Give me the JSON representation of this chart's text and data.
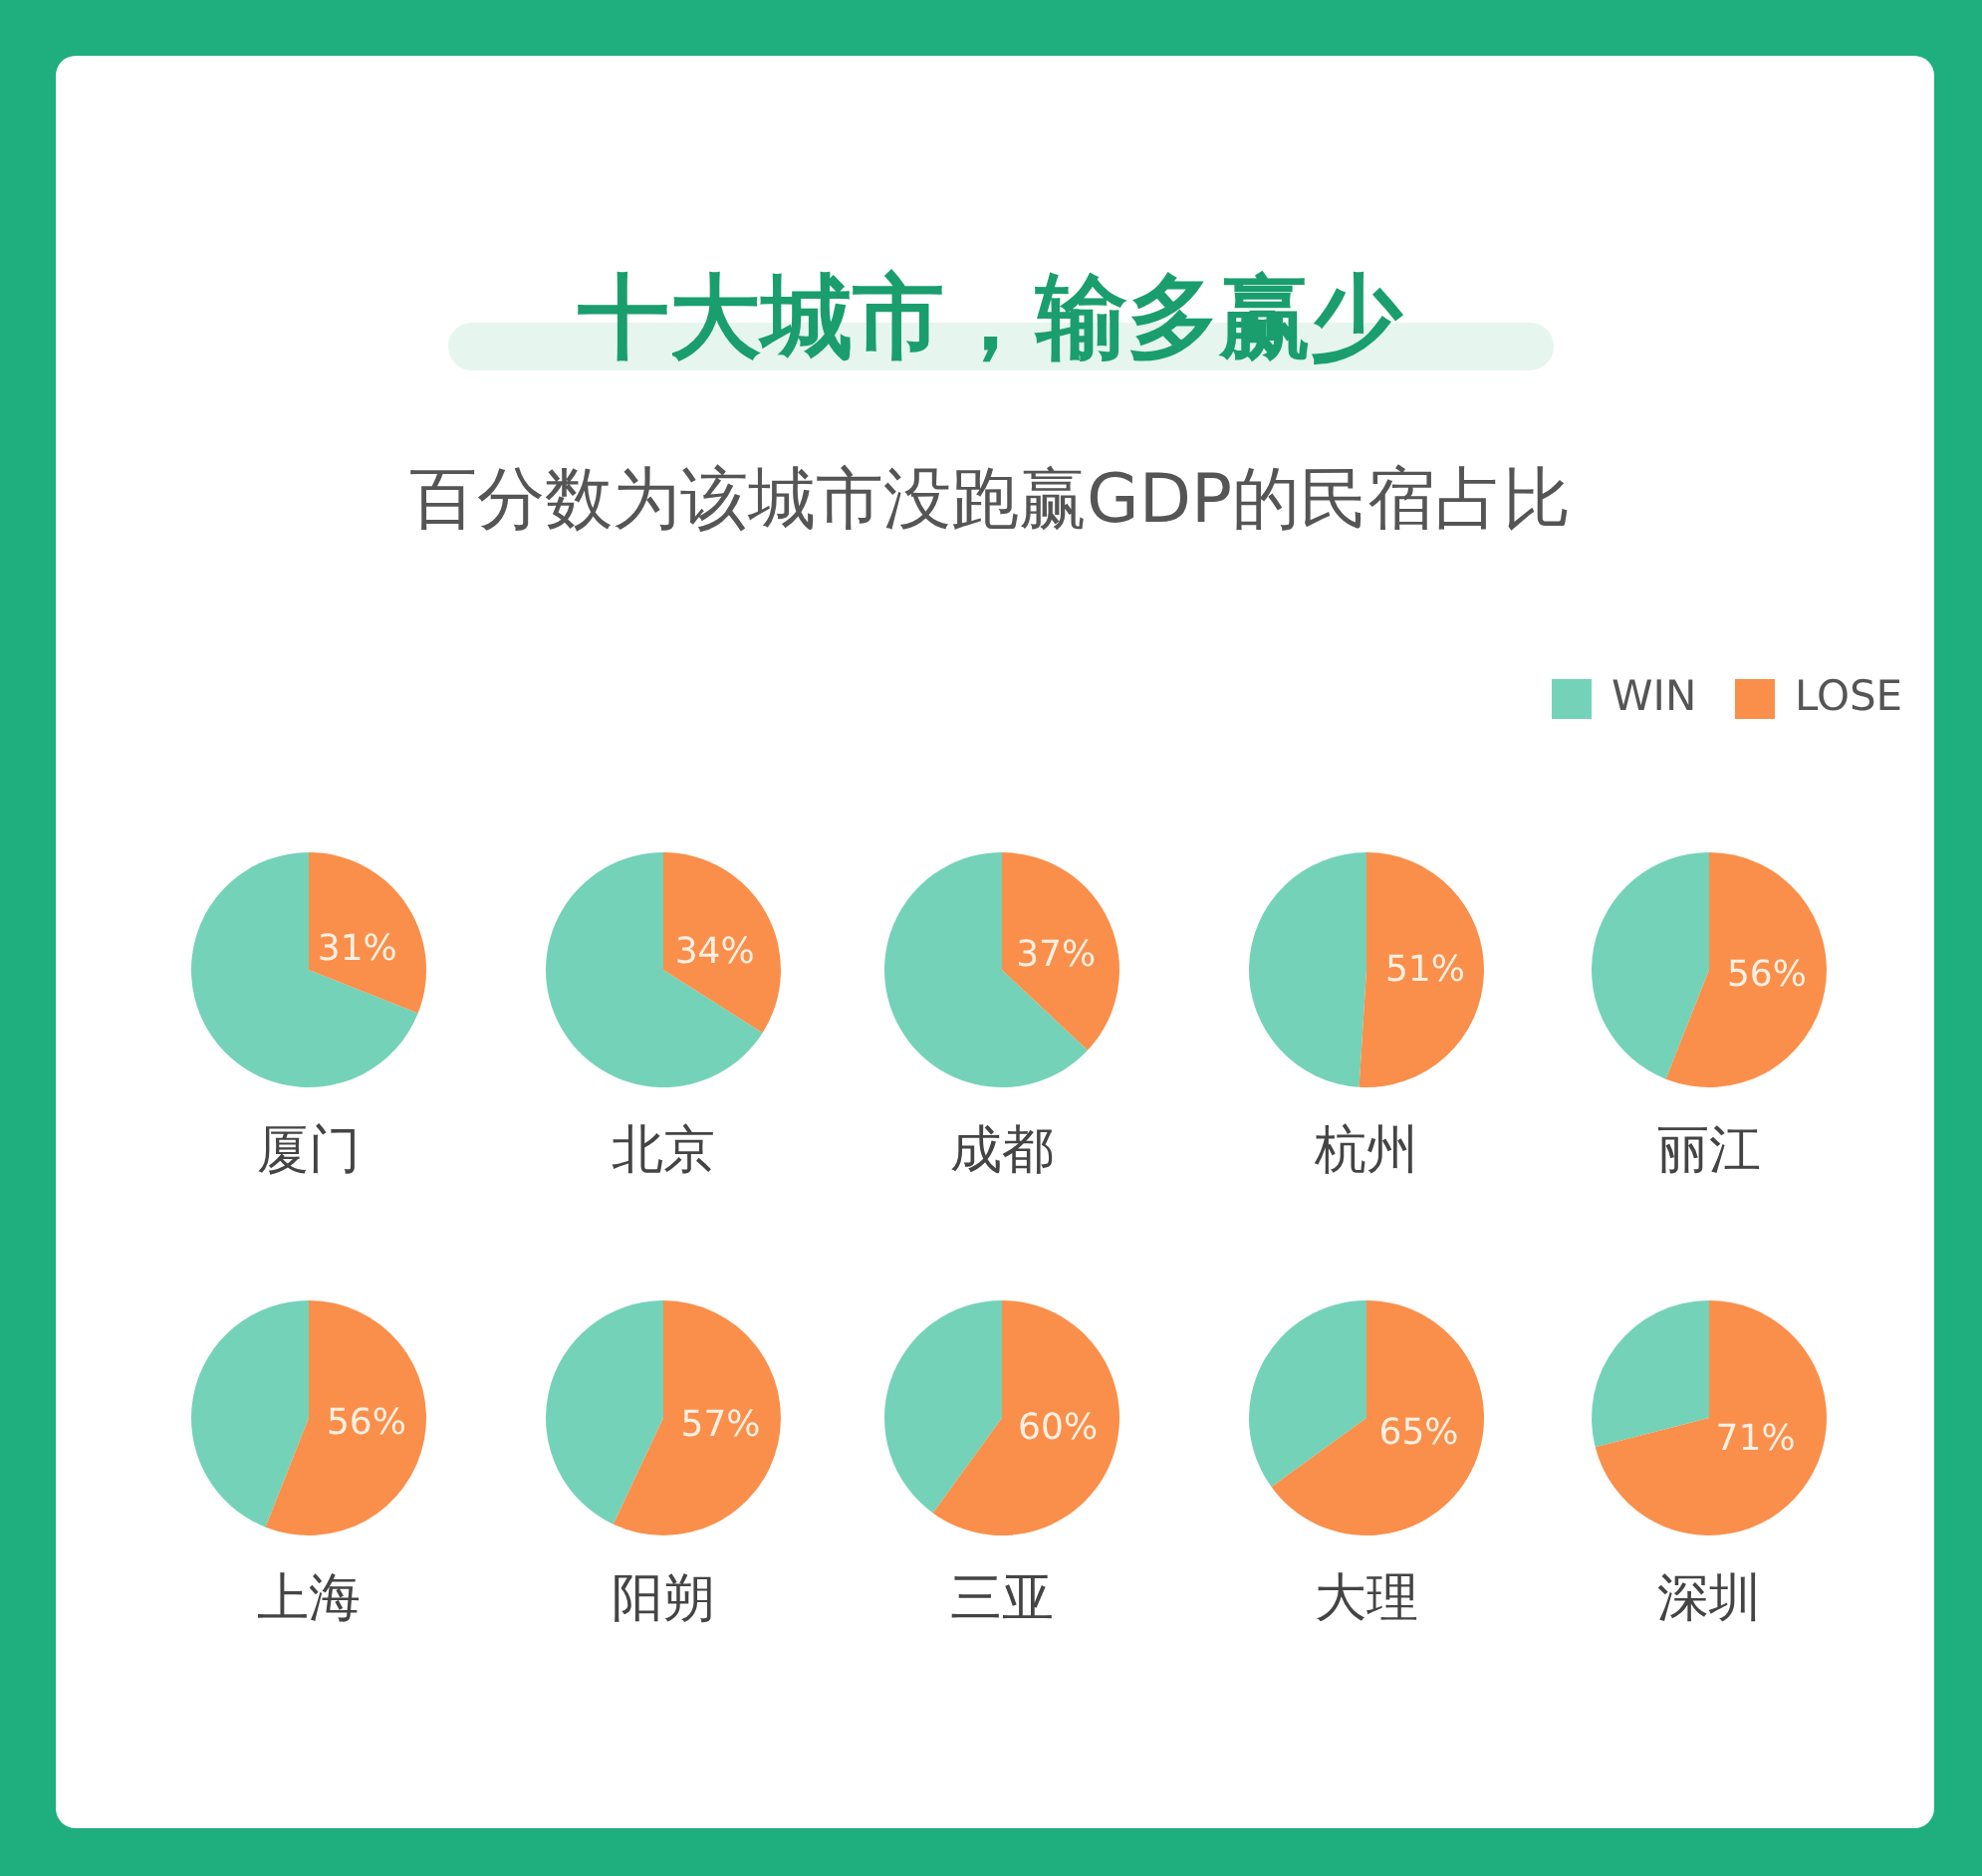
{
  "chart_data": [
    {
      "type": "other",
      "title": "十大城市，输多赢少",
      "subtitle": "百分数为该城市没跑赢GDP的民宿占比"
    },
    {
      "type": "pie",
      "title": "厦门",
      "categories": [
        null,
        null
      ],
      "values": [
        69,
        31
      ],
      "colors": [
        "#74d2b8",
        "#f98f4a"
      ],
      "value_labels": [
        null,
        "31%"
      ]
    },
    {
      "type": "pie",
      "title": "北京",
      "categories": [
        null,
        null
      ],
      "values": [
        66,
        34
      ],
      "colors": [
        "#74d2b8",
        "#f98f4a"
      ],
      "value_labels": [
        null,
        "34%"
      ]
    },
    {
      "type": "pie",
      "title": "成都",
      "categories": [
        null,
        null
      ],
      "values": [
        63,
        37
      ],
      "colors": [
        "#74d2b8",
        "#f98f4a"
      ],
      "value_labels": [
        null,
        "37%"
      ]
    },
    {
      "type": "pie",
      "title": "杭州",
      "categories": [
        null,
        null
      ],
      "values": [
        49,
        51
      ],
      "colors": [
        "#74d2b8",
        "#f98f4a"
      ],
      "value_labels": [
        null,
        "51%"
      ]
    },
    {
      "type": "pie",
      "title": "丽江",
      "categories": [
        "WIN",
        "LOSE"
      ],
      "values": [
        44,
        56
      ],
      "colors": [
        "#74d2b8",
        "#f98f4a"
      ],
      "value_labels": [
        null,
        "56%"
      ],
      "legend": "top right"
    },
    {
      "type": "pie",
      "title": "上海",
      "categories": [
        null,
        null
      ],
      "values": [
        44,
        56
      ],
      "colors": [
        "#74d2b8",
        "#f98f4a"
      ],
      "value_labels": [
        null,
        "56%"
      ]
    },
    {
      "type": "pie",
      "title": "阳朔",
      "categories": [
        null,
        null
      ],
      "values": [
        43,
        57
      ],
      "colors": [
        "#74d2b8",
        "#f98f4a"
      ],
      "value_labels": [
        null,
        "57%"
      ]
    },
    {
      "type": "pie",
      "title": "三亚",
      "categories": [
        null,
        null
      ],
      "values": [
        40,
        60
      ],
      "colors": [
        "#74d2b8",
        "#f98f4a"
      ],
      "value_labels": [
        null,
        "60%"
      ]
    },
    {
      "type": "pie",
      "title": "大理",
      "categories": [
        null,
        null
      ],
      "values": [
        35,
        65
      ],
      "colors": [
        "#74d2b8",
        "#f98f4a"
      ],
      "value_labels": [
        null,
        "65%"
      ]
    },
    {
      "type": "pie",
      "title": "深圳",
      "categories": [
        null,
        null
      ],
      "values": [
        29,
        71
      ],
      "colors": [
        "#74d2b8",
        "#f98f4a"
      ],
      "value_labels": [
        null,
        "71%"
      ]
    }
  ]
}
